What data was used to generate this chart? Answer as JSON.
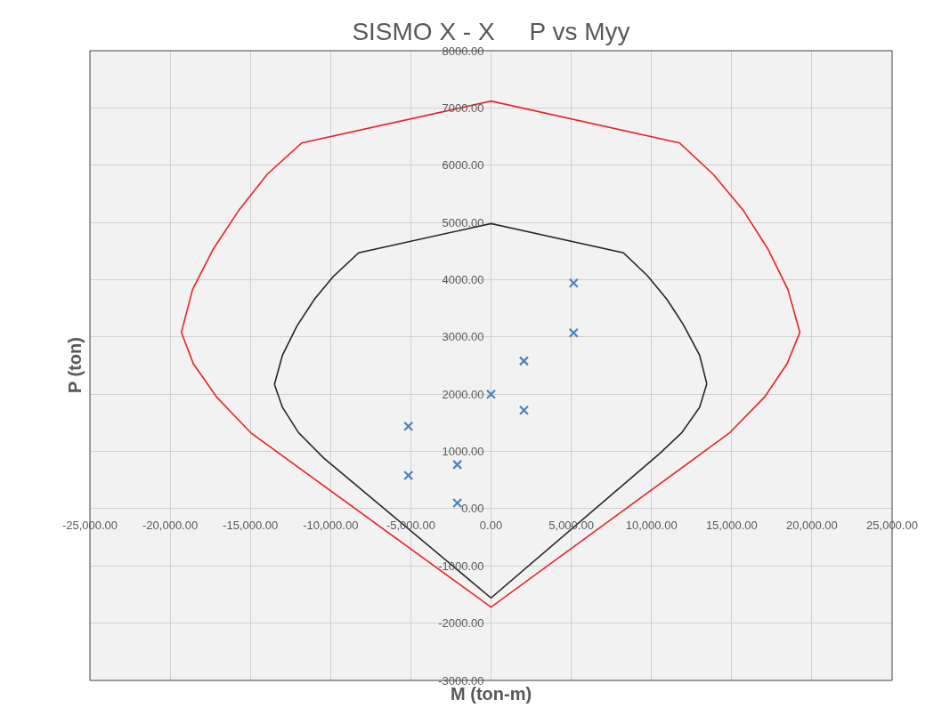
{
  "chart_data": {
    "type": "line",
    "title": "SISMO X - X     P vs Myy",
    "xlabel": "M (ton-m)",
    "ylabel": "P (ton)",
    "xlim": [
      -25000,
      25000
    ],
    "xticks": [
      {
        "value": -25000,
        "label": "-25,000.00"
      },
      {
        "value": -20000,
        "label": "-20,000.00"
      },
      {
        "value": -15000,
        "label": "-15,000.00"
      },
      {
        "value": -10000,
        "label": "-10,000.00"
      },
      {
        "value": -5000,
        "label": "-5,000.00"
      },
      {
        "value": 0,
        "label": "0.00"
      },
      {
        "value": 5000,
        "label": "5,000.00"
      },
      {
        "value": 10000,
        "label": "10,000.00"
      },
      {
        "value": 15000,
        "label": "15,000.00"
      },
      {
        "value": 20000,
        "label": "20,000.00"
      },
      {
        "value": 25000,
        "label": "25,000.00"
      }
    ],
    "ylim": [
      -3000,
      8000
    ],
    "yticks": [
      {
        "value": -3000,
        "label": "-3000.00"
      },
      {
        "value": -2000,
        "label": "-2000.00"
      },
      {
        "value": -1000,
        "label": "-1000.00"
      },
      {
        "value": 0,
        "label": "0.00"
      },
      {
        "value": 1000,
        "label": "1000.00"
      },
      {
        "value": 2000,
        "label": "2000.00"
      },
      {
        "value": 3000,
        "label": "3000.00"
      },
      {
        "value": 4000,
        "label": "4000.00"
      },
      {
        "value": 5000,
        "label": "5000.00"
      },
      {
        "value": 6000,
        "label": "6000.00"
      },
      {
        "value": 7000,
        "label": "7000.00"
      },
      {
        "value": 8000,
        "label": "8000.00"
      }
    ],
    "grid": true,
    "series": [
      {
        "color": "#e8212e",
        "x": [
          -19300,
          -18600,
          -17300,
          -15700,
          -13950,
          -11800,
          0,
          11750,
          13850,
          15700,
          17250,
          18500,
          19250
        ],
        "values": [
          3080,
          3830,
          4540,
          5220,
          5840,
          6390,
          7120,
          6390,
          5840,
          5220,
          4540,
          3830,
          3080
        ]
      },
      {
        "color": "#e8212e",
        "x": [
          -19300,
          -18550,
          -17100,
          -14950,
          0,
          14850,
          17050,
          18450,
          19250
        ],
        "values": [
          3080,
          2530,
          1950,
          1320,
          -1720,
          1320,
          1950,
          2530,
          3080
        ]
      },
      {
        "color": "#262626",
        "x": [
          -13500,
          -13000,
          -12100,
          -11000,
          -9850,
          -8250,
          0,
          8250,
          9750,
          10950,
          12000,
          13000,
          13450
        ],
        "values": [
          2170,
          2680,
          3190,
          3660,
          4050,
          4470,
          4980,
          4470,
          4070,
          3660,
          3210,
          2680,
          2180
        ]
      },
      {
        "color": "#262626",
        "x": [
          -13500,
          -13000,
          -12000,
          -10450,
          0,
          10500,
          11900,
          13000,
          13450
        ],
        "values": [
          2170,
          1770,
          1330,
          890,
          -1560,
          960,
          1330,
          1770,
          2180
        ]
      },
      {
        "type": "scatter",
        "marker": "cross",
        "color": "#4f81bd",
        "x": [
          5150,
          5150,
          2050,
          0,
          2050,
          -5150,
          -2100,
          -5150,
          -2100
        ],
        "values": [
          3940,
          3070,
          2580,
          2000,
          1720,
          1440,
          770,
          580,
          100
        ]
      }
    ]
  }
}
